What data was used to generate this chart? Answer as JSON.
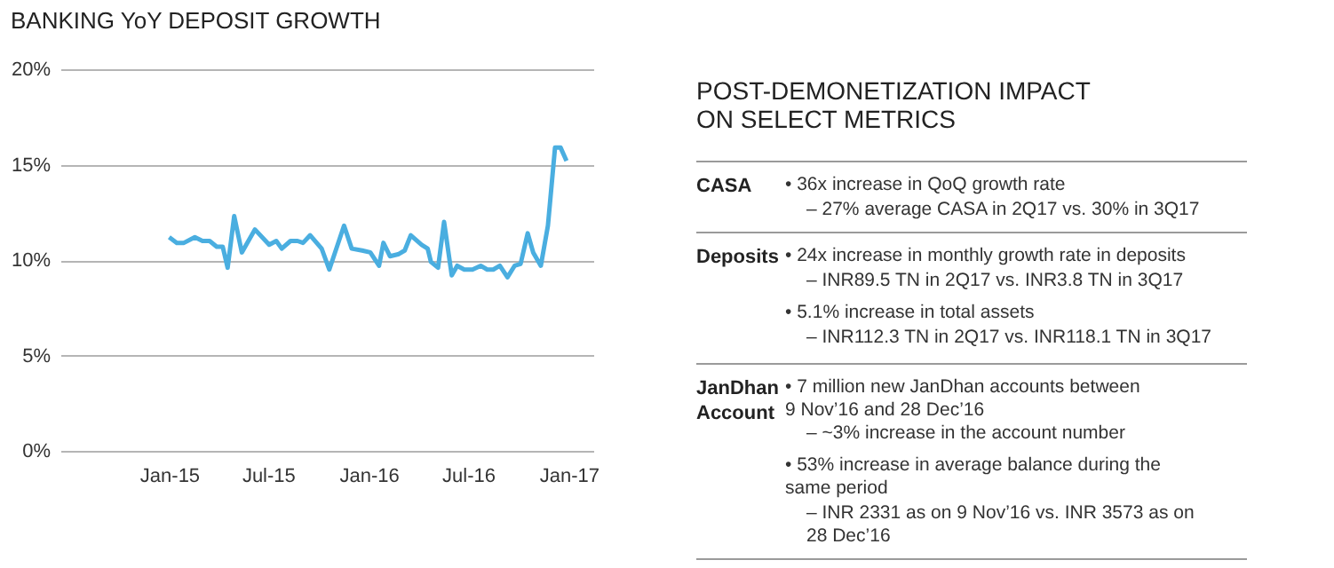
{
  "chart_data": [
    {
      "type": "line",
      "title": "BANKING YoY DEPOSIT GROWTH",
      "grid": "y",
      "marker": "none",
      "line_style": "solid",
      "xlim": [
        "2014-06-16",
        "2017-02-15"
      ],
      "xticks": [
        {
          "value": "2015-01-01",
          "label": "Jan-15"
        },
        {
          "value": "2015-07-01",
          "label": "Jul-15"
        },
        {
          "value": "2016-01-01",
          "label": "Jan-16"
        },
        {
          "value": "2016-07-01",
          "label": "Jul-16"
        },
        {
          "value": "2017-01-01",
          "label": "Jan-17"
        }
      ],
      "ylim": [
        0,
        20
      ],
      "yticks": [
        {
          "value": 0,
          "label": "0%"
        },
        {
          "value": 5,
          "label": "5%"
        },
        {
          "value": 10,
          "label": "10%"
        },
        {
          "value": 15,
          "label": "15%"
        },
        {
          "value": 20,
          "label": "20%"
        }
      ],
      "series": [
        {
          "color": "#4aaee0",
          "x": [
            "2015-01-01",
            "2015-01-15",
            "2015-01-28",
            "2015-02-17",
            "2015-03-03",
            "2015-03-16",
            "2015-03-29",
            "2015-04-09",
            "2015-04-18",
            "2015-04-30",
            "2015-05-14",
            "2015-06-07",
            "2015-07-03",
            "2015-07-16",
            "2015-07-26",
            "2015-08-11",
            "2015-08-24",
            "2015-09-03",
            "2015-09-16",
            "2015-10-07",
            "2015-10-21",
            "2015-11-17",
            "2015-12-01",
            "2015-12-20",
            "2016-01-04",
            "2016-01-20",
            "2016-01-28",
            "2016-02-09",
            "2016-02-24",
            "2016-03-07",
            "2016-03-18",
            "2016-04-07",
            "2016-04-18",
            "2016-04-24",
            "2016-05-07",
            "2016-05-18",
            "2016-06-01",
            "2016-06-11",
            "2016-06-24",
            "2016-07-09",
            "2016-07-24",
            "2016-08-05",
            "2016-08-16",
            "2016-08-28",
            "2016-09-11",
            "2016-09-24",
            "2016-10-05",
            "2016-10-18",
            "2016-10-28",
            "2016-11-11",
            "2016-11-24",
            "2016-12-07",
            "2016-12-17",
            "2016-12-28"
          ],
          "values": [
            11.2,
            10.9,
            10.9,
            11.2,
            11.0,
            11.0,
            10.7,
            10.7,
            9.6,
            12.3,
            10.4,
            11.6,
            10.8,
            11.0,
            10.6,
            11.0,
            11.0,
            10.9,
            11.3,
            10.6,
            9.5,
            11.8,
            10.6,
            10.5,
            10.4,
            9.7,
            10.9,
            10.2,
            10.3,
            10.5,
            11.3,
            10.8,
            10.6,
            9.9,
            9.6,
            12.0,
            9.2,
            9.7,
            9.5,
            9.5,
            9.7,
            9.5,
            9.5,
            9.7,
            9.1,
            9.7,
            9.8,
            11.4,
            10.4,
            9.7,
            11.8,
            15.9,
            15.9,
            15.2
          ]
        }
      ]
    },
    {
      "type": "other",
      "title": "POST-DEMONETIZATION IMPACT\nON SELECT METRICS",
      "annotations": [
        "CASA",
        "• 36x increase in QoQ growth rate",
        "– 27% average CASA in 2Q17 vs. 30% in 3Q17",
        "Deposits",
        "• 24x increase in monthly growth rate in deposits",
        "– INR89.5 TN in 2Q17 vs. INR3.8 TN in 3Q17",
        "• 5.1% increase in total assets",
        "– INR112.3 TN in 2Q17 vs. INR118.1 TN in 3Q17",
        "JanDhan\nAccount",
        "• 7 million new JanDhan accounts between\n9 Nov’16 and 28 Dec’16",
        "– ~3% increase in the account number",
        "• 53% increase in average balance during the\nsame period",
        "– INR 2331 as on 9 Nov’16 vs. INR 3573 as on\n28 Dec’16"
      ]
    }
  ]
}
